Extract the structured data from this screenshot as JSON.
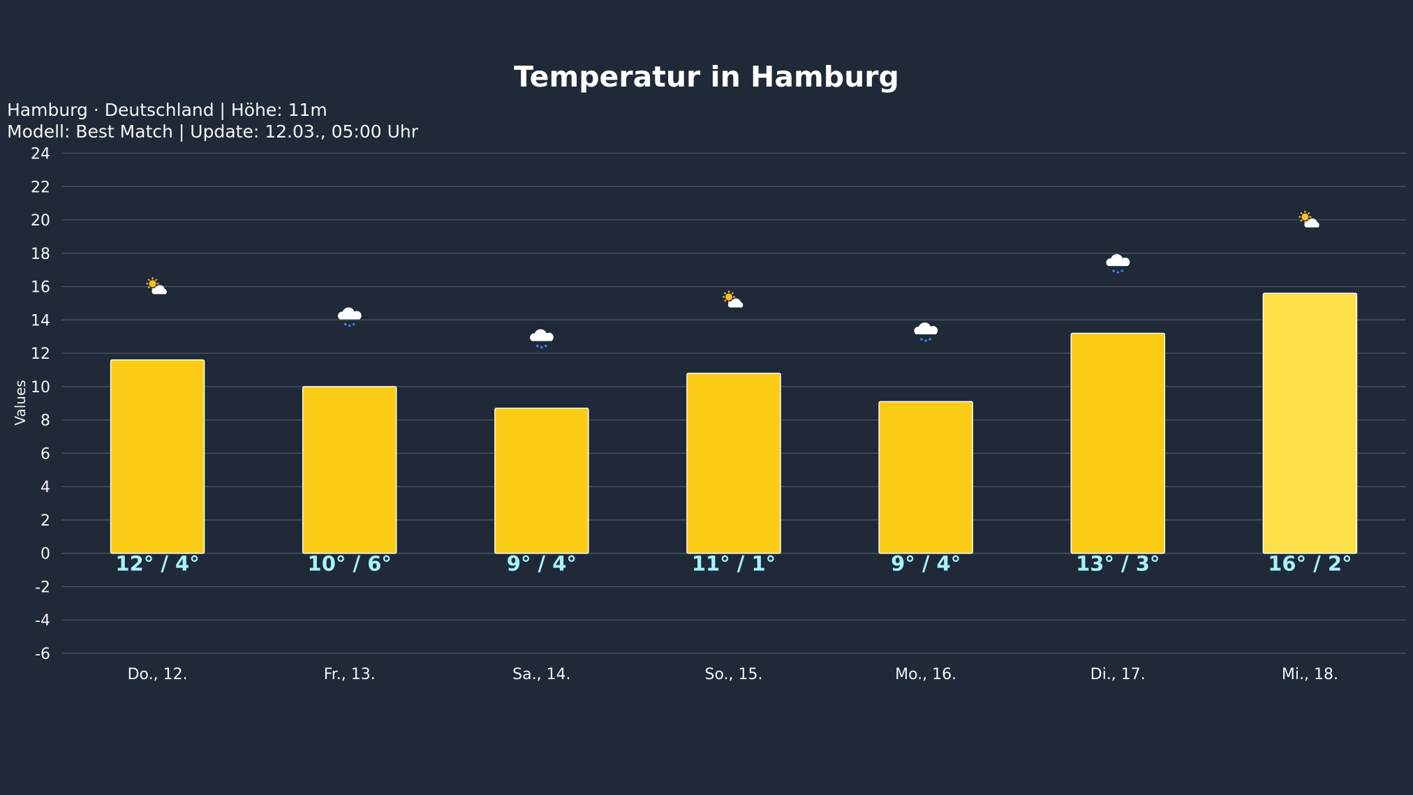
{
  "chart_data": {
    "type": "bar",
    "title": "Temperatur in Hamburg",
    "subtitle_lines": [
      "Hamburg · Deutschland | Höhe: 11m",
      "Modell: Best Match | Update: 12.03., 05:00 Uhr"
    ],
    "xlabel": "",
    "ylabel": "Values",
    "ylim": [
      -6,
      24
    ],
    "yticks": [
      24,
      22,
      20,
      18,
      16,
      14,
      12,
      10,
      8,
      6,
      4,
      2,
      0,
      -2,
      -4,
      -6
    ],
    "grid": true,
    "categories": [
      "Do., 12.",
      "Fr., 13.",
      "Sa., 14.",
      "So., 15.",
      "Mo., 16.",
      "Di., 17.",
      "Mi., 18."
    ],
    "values": [
      11.6,
      10.0,
      8.7,
      10.8,
      9.1,
      13.2,
      15.6
    ],
    "data_labels": [
      "12° / 4°",
      "10° / 6°",
      "9° / 4°",
      "11° / 1°",
      "9° / 4°",
      "13° / 3°",
      "16° / 2°"
    ],
    "weather_icons": [
      "partly-cloudy",
      "cloud-drizzle",
      "cloud-drizzle",
      "partly-cloudy",
      "cloud-drizzle",
      "cloud-drizzle",
      "partly-cloudy"
    ],
    "highlighted_index": 6,
    "colors": {
      "background": "#1f2937",
      "bar": "#facc15",
      "bar_highlight": "#fde047",
      "bar_border": "#ffffff",
      "label": "#a5f3fc",
      "grid": "#4b5563",
      "sun": "#fbbf24",
      "drizzle": "#3b82f6"
    }
  }
}
